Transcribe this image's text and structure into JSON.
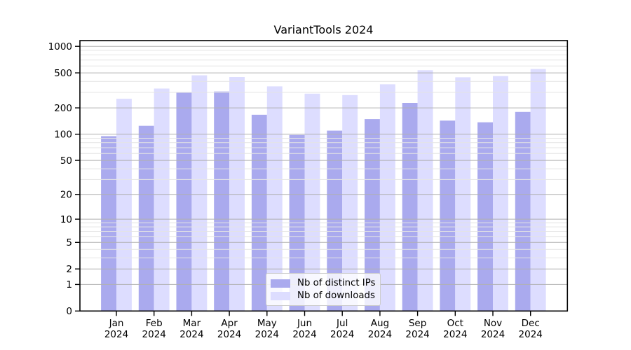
{
  "chart_data": {
    "type": "bar",
    "title": "VariantTools 2024",
    "categories": [
      "Jan",
      "Feb",
      "Mar",
      "Apr",
      "May",
      "Jun",
      "Jul",
      "Aug",
      "Sep",
      "Oct",
      "Nov",
      "Dec"
    ],
    "category_year": "2024",
    "series": [
      {
        "key": "distinct-ips",
        "name": "Nb of distinct IPs",
        "color": "#aaaaee",
        "values": [
          95,
          125,
          299,
          307,
          167,
          98,
          110,
          149,
          228,
          143,
          137,
          180
        ]
      },
      {
        "key": "downloads",
        "name": "Nb of downloads",
        "color": "#ddddff",
        "values": [
          254,
          332,
          469,
          449,
          351,
          290,
          280,
          371,
          536,
          446,
          460,
          553
        ]
      }
    ],
    "yscale": "log10(1+y)",
    "ytick_labels": [
      0,
      1,
      2,
      5,
      10,
      20,
      50,
      100,
      200,
      500,
      1000
    ],
    "minor_gridlines": [
      3,
      4,
      6,
      7,
      8,
      9,
      30,
      40,
      60,
      70,
      80,
      90,
      300,
      400,
      600,
      700,
      800,
      900
    ],
    "ylim": [
      0,
      1160
    ],
    "xlabel": "",
    "ylabel": "",
    "grid": "major+minor",
    "legend_position": "lower center"
  },
  "colors": {
    "major_grid": "#b0b0b0",
    "minor_grid": "#e4e4e4",
    "axis": "#000000",
    "background": "#ffffff",
    "tick_text": "#000000"
  }
}
